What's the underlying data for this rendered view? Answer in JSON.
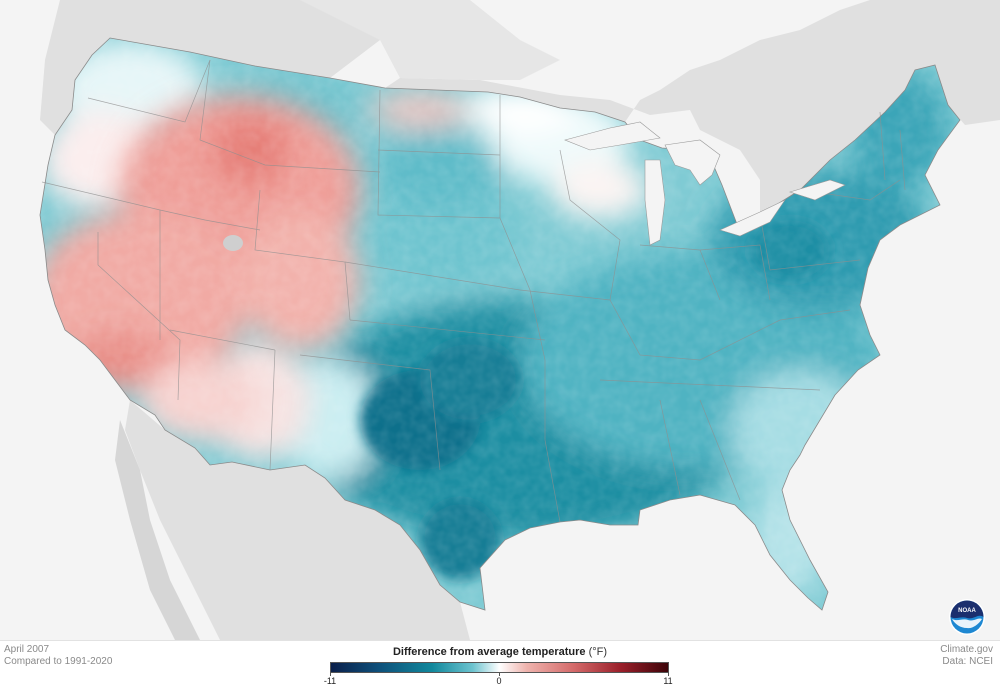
{
  "map": {
    "region": "Contiguous United States",
    "variable": "Difference from average temperature",
    "colors": {
      "much_cooler": "#0b1f4a",
      "cooler": "#11889c",
      "near_average": "#ffffff",
      "warmer": "#d46a6a",
      "much_warmer": "#3d0409",
      "land_outside_us": "#e0e0e0",
      "water": "#f4f4f4",
      "state_border": "#8f8f8f"
    },
    "anomaly_pattern": {
      "warmer_than_average": "Interior West (Idaho, Montana, Wyoming, Utah, Nevada, Colorado, Arizona)",
      "near_average": "Pacific Northwest, Upper Midwest, West Texas / New Mexico",
      "cooler_than_average": "Great Plains, Texas, Southeast, Ohio Valley, Northeast",
      "strongest_cooling": "Central and North Texas, Oklahoma"
    }
  },
  "footer": {
    "period": "April 2007",
    "baseline": "Compared to 1991-2020",
    "credit": "Climate.gov",
    "data_source": "Data: NCEI"
  },
  "legend": {
    "title": "Difference from average temperature",
    "unit": "(°F)",
    "min": -11,
    "mid": 0,
    "max": 11,
    "tick_labels": [
      "-11",
      "0",
      "11"
    ]
  },
  "logo": {
    "text": "NOAA",
    "icon": "noaa-logo-icon",
    "colors": {
      "top": "#1b2f6e",
      "bottom": "#1e88d2",
      "wave": "#ffffff"
    }
  }
}
